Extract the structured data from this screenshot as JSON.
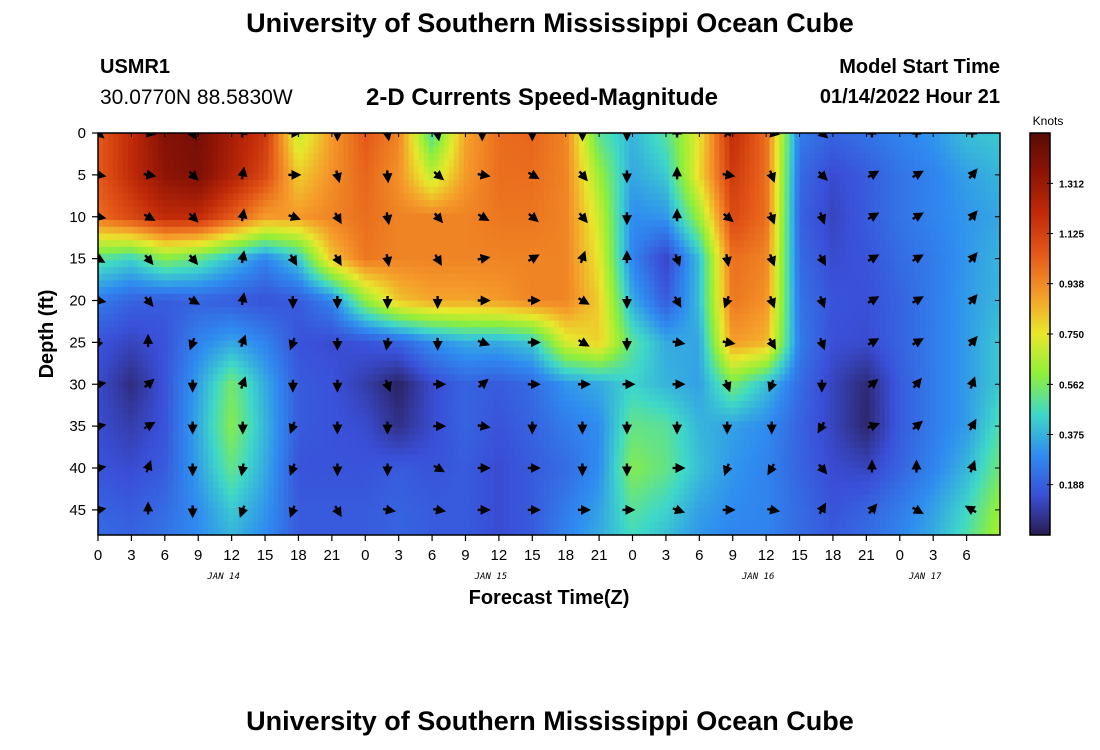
{
  "page": {
    "title": "University of Southern Mississippi Ocean Cube",
    "footer_title": "University of Southern Mississippi Ocean Cube",
    "station_id": "USMR1",
    "station_coords": "30.0770N  88.5830W",
    "plot_title": "2-D Currents Speed-Magnitude",
    "model_start_label": "Model Start Time",
    "model_start_value": "01/14/2022 Hour 21"
  },
  "colors": {
    "scale": [
      "#2a1c52",
      "#3a4fd8",
      "#2f8cf0",
      "#3fd8c8",
      "#8fef3a",
      "#e8e82c",
      "#f59a2a",
      "#e45818",
      "#c02a08",
      "#8e1406",
      "#5a0a06"
    ]
  },
  "chart_data": {
    "type": "heatmap",
    "xlabel": "Forecast Time(Z)",
    "ylabel": "Depth (ft)",
    "colorbar_label": "Knots",
    "x_range": [
      0,
      81
    ],
    "y_range": [
      0,
      48
    ],
    "x_ticks": [
      {
        "value": 0,
        "label": "0"
      },
      {
        "value": 3,
        "label": "3"
      },
      {
        "value": 6,
        "label": "6"
      },
      {
        "value": 9,
        "label": "9"
      },
      {
        "value": 12,
        "label": "12"
      },
      {
        "value": 15,
        "label": "15"
      },
      {
        "value": 18,
        "label": "18"
      },
      {
        "value": 21,
        "label": "21"
      },
      {
        "value": 24,
        "label": "0"
      },
      {
        "value": 27,
        "label": "3"
      },
      {
        "value": 30,
        "label": "6"
      },
      {
        "value": 33,
        "label": "9"
      },
      {
        "value": 36,
        "label": "12"
      },
      {
        "value": 39,
        "label": "15"
      },
      {
        "value": 42,
        "label": "18"
      },
      {
        "value": 45,
        "label": "21"
      },
      {
        "value": 48,
        "label": "0"
      },
      {
        "value": 51,
        "label": "3"
      },
      {
        "value": 54,
        "label": "6"
      },
      {
        "value": 57,
        "label": "9"
      },
      {
        "value": 60,
        "label": "12"
      },
      {
        "value": 63,
        "label": "15"
      },
      {
        "value": 66,
        "label": "18"
      },
      {
        "value": 69,
        "label": "21"
      },
      {
        "value": 72,
        "label": "0"
      },
      {
        "value": 75,
        "label": "3"
      },
      {
        "value": 78,
        "label": "6"
      }
    ],
    "date_labels": [
      {
        "value": 12,
        "label": "JAN 14"
      },
      {
        "value": 36,
        "label": "JAN 15"
      },
      {
        "value": 60,
        "label": "JAN 16"
      },
      {
        "value": 75,
        "label": "JAN 17"
      }
    ],
    "y_ticks": [
      0,
      5,
      10,
      15,
      20,
      25,
      30,
      35,
      40,
      45
    ],
    "colorbar": {
      "range": [
        0,
        1.5
      ],
      "ticks": [
        0.188,
        0.375,
        0.562,
        0.75,
        0.938,
        1.125,
        1.312
      ],
      "tick_labels": [
        "0.188",
        "0.375",
        "0.562",
        "0.750",
        "0.938",
        "1.125",
        "1.312"
      ]
    },
    "speed_field": {
      "hours": [
        0,
        3,
        6,
        9,
        12,
        15,
        18,
        21,
        24,
        27,
        30,
        33,
        36,
        39,
        42,
        45,
        48,
        51,
        54,
        57,
        60,
        63,
        66,
        69,
        72,
        75,
        78,
        81
      ],
      "depths": [
        0,
        5,
        10,
        15,
        20,
        25,
        30,
        35,
        40,
        45,
        48
      ],
      "values": [
        [
          1.05,
          1.2,
          1.38,
          1.42,
          1.28,
          1.15,
          0.68,
          0.9,
          1.05,
          0.95,
          0.48,
          0.88,
          1.0,
          1.02,
          0.95,
          0.5,
          0.38,
          0.5,
          0.75,
          1.2,
          1.0,
          0.26,
          0.2,
          0.24,
          0.28,
          0.32,
          0.4,
          0.42
        ],
        [
          1.05,
          1.2,
          1.35,
          1.4,
          1.25,
          1.1,
          0.8,
          0.92,
          1.02,
          0.92,
          0.68,
          0.9,
          1.0,
          1.0,
          0.95,
          0.62,
          0.35,
          0.42,
          0.78,
          1.15,
          1.0,
          0.22,
          0.14,
          0.18,
          0.24,
          0.28,
          0.34,
          0.38
        ],
        [
          1.0,
          1.1,
          1.2,
          1.2,
          1.05,
          0.9,
          0.9,
          0.95,
          1.0,
          0.95,
          0.95,
          0.95,
          0.98,
          0.98,
          0.95,
          0.7,
          0.3,
          0.32,
          0.62,
          1.1,
          1.0,
          0.2,
          0.12,
          0.18,
          0.24,
          0.28,
          0.32,
          0.35
        ],
        [
          0.5,
          0.44,
          0.58,
          0.52,
          0.4,
          0.28,
          0.42,
          0.82,
          0.98,
          0.95,
          0.95,
          0.95,
          0.95,
          0.95,
          0.95,
          0.75,
          0.28,
          0.12,
          0.4,
          1.0,
          0.95,
          0.22,
          0.14,
          0.16,
          0.22,
          0.26,
          0.32,
          0.38
        ],
        [
          0.26,
          0.2,
          0.18,
          0.2,
          0.18,
          0.16,
          0.18,
          0.28,
          0.6,
          0.82,
          0.88,
          0.88,
          0.9,
          0.95,
          0.95,
          0.8,
          0.36,
          0.18,
          0.4,
          0.98,
          0.92,
          0.24,
          0.16,
          0.15,
          0.2,
          0.26,
          0.33,
          0.38
        ],
        [
          0.16,
          0.12,
          0.16,
          0.28,
          0.35,
          0.28,
          0.16,
          0.14,
          0.16,
          0.2,
          0.3,
          0.36,
          0.36,
          0.42,
          0.72,
          0.8,
          0.5,
          0.36,
          0.35,
          0.9,
          0.85,
          0.26,
          0.15,
          0.14,
          0.2,
          0.26,
          0.33,
          0.42
        ],
        [
          0.14,
          0.05,
          0.16,
          0.34,
          0.55,
          0.36,
          0.18,
          0.16,
          0.1,
          0.02,
          0.14,
          0.2,
          0.18,
          0.22,
          0.32,
          0.36,
          0.44,
          0.38,
          0.34,
          0.55,
          0.4,
          0.22,
          0.12,
          0.04,
          0.18,
          0.26,
          0.33,
          0.42
        ],
        [
          0.14,
          0.1,
          0.16,
          0.36,
          0.58,
          0.38,
          0.18,
          0.16,
          0.14,
          0.06,
          0.14,
          0.2,
          0.16,
          0.2,
          0.26,
          0.3,
          0.52,
          0.5,
          0.38,
          0.34,
          0.3,
          0.2,
          0.12,
          0.03,
          0.18,
          0.26,
          0.33,
          0.48
        ],
        [
          0.16,
          0.14,
          0.18,
          0.34,
          0.52,
          0.36,
          0.16,
          0.16,
          0.16,
          0.18,
          0.16,
          0.18,
          0.14,
          0.18,
          0.22,
          0.3,
          0.58,
          0.52,
          0.4,
          0.32,
          0.28,
          0.2,
          0.14,
          0.12,
          0.2,
          0.28,
          0.38,
          0.54
        ],
        [
          0.2,
          0.18,
          0.22,
          0.3,
          0.42,
          0.32,
          0.18,
          0.18,
          0.18,
          0.2,
          0.18,
          0.18,
          0.14,
          0.18,
          0.26,
          0.34,
          0.5,
          0.44,
          0.34,
          0.3,
          0.28,
          0.22,
          0.16,
          0.2,
          0.26,
          0.34,
          0.45,
          0.62
        ],
        [
          0.22,
          0.2,
          0.24,
          0.3,
          0.38,
          0.3,
          0.18,
          0.18,
          0.18,
          0.2,
          0.18,
          0.18,
          0.14,
          0.18,
          0.28,
          0.36,
          0.46,
          0.4,
          0.32,
          0.28,
          0.28,
          0.22,
          0.18,
          0.22,
          0.28,
          0.36,
          0.48,
          0.65
        ]
      ]
    },
    "vectors": {
      "hours": [
        0,
        4.5,
        8.5,
        13,
        17.5,
        21.5,
        26,
        30.5,
        34.5,
        39,
        43.5,
        47.5,
        52,
        56.5,
        60.5,
        65,
        69.5,
        73.5,
        78.5
      ],
      "depths": [
        0,
        5,
        10,
        15,
        20,
        25,
        30,
        35,
        40,
        45
      ],
      "directions_deg": [
        [
          130,
          100,
          150,
          10,
          90,
          180,
          170,
          170,
          180,
          180,
          180,
          180,
          0,
          30,
          100,
          130,
          0,
          0,
          0
        ],
        [
          100,
          100,
          135,
          10,
          90,
          165,
          175,
          130,
          100,
          120,
          140,
          180,
          0,
          100,
          160,
          135,
          60,
          60,
          40
        ],
        [
          100,
          120,
          135,
          10,
          110,
          150,
          170,
          140,
          120,
          130,
          140,
          180,
          0,
          130,
          160,
          160,
          60,
          60,
          40
        ],
        [
          120,
          140,
          140,
          10,
          150,
          150,
          170,
          150,
          80,
          60,
          20,
          0,
          160,
          170,
          160,
          150,
          60,
          60,
          40
        ],
        [
          100,
          140,
          120,
          10,
          180,
          180,
          180,
          180,
          90,
          90,
          120,
          180,
          150,
          200,
          160,
          160,
          60,
          60,
          40
        ],
        [
          200,
          0,
          200,
          20,
          200,
          180,
          190,
          180,
          110,
          90,
          120,
          180,
          100,
          100,
          150,
          160,
          60,
          60,
          40
        ],
        [
          80,
          50,
          180,
          20,
          180,
          180,
          160,
          90,
          50,
          90,
          90,
          90,
          90,
          160,
          200,
          180,
          50,
          40,
          20
        ],
        [
          80,
          60,
          180,
          180,
          200,
          180,
          180,
          90,
          100,
          180,
          180,
          180,
          180,
          180,
          180,
          210,
          70,
          50,
          30
        ],
        [
          80,
          20,
          180,
          190,
          200,
          180,
          180,
          120,
          90,
          90,
          180,
          180,
          90,
          200,
          210,
          140,
          0,
          0,
          20
        ],
        [
          80,
          0,
          180,
          200,
          200,
          150,
          100,
          100,
          90,
          90,
          90,
          90,
          110,
          90,
          100,
          30,
          40,
          120,
          300
        ]
      ]
    }
  }
}
